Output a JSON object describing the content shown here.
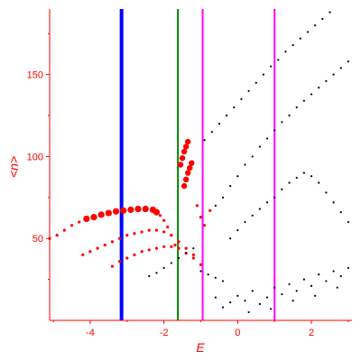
{
  "chart_data": {
    "type": "scatter",
    "title": "",
    "xlabel": "E",
    "ylabel": "<n>",
    "xlim": [
      -5.1,
      3.1
    ],
    "ylim": [
      0,
      190
    ],
    "x_ticks": [
      -4,
      -2,
      0,
      2
    ],
    "y_ticks": [
      50,
      100,
      150
    ],
    "x_tick_labels": [
      "-4",
      "-2",
      "0",
      "2"
    ],
    "y_tick_labels": [
      "50",
      "100",
      "150"
    ],
    "grid": false,
    "colors": {
      "axes": "#ff0000",
      "red_series": "#ff0000",
      "black_series": "#000000",
      "blue_line": "#0000ff",
      "green_line": "#008000",
      "magenta_line": "#ff00ff"
    },
    "vertical_lines": [
      {
        "x": -3.15,
        "color": "#0000ff"
      },
      {
        "x": -1.62,
        "color": "#008000"
      },
      {
        "x": -0.95,
        "color": "#ff00ff"
      },
      {
        "x": 1.0,
        "color": "#ff00ff"
      }
    ],
    "series": [
      {
        "color": "#ff0000",
        "points": [
          [
            -5.1,
            50
          ],
          [
            -4.9,
            52
          ],
          [
            -4.7,
            55
          ],
          [
            -4.5,
            58
          ],
          [
            -4.3,
            60
          ],
          [
            -4.1,
            62
          ],
          [
            -3.9,
            63
          ],
          [
            -3.7,
            64.5
          ],
          [
            -3.5,
            65.5
          ],
          [
            -3.3,
            66.5
          ],
          [
            -3.1,
            67
          ],
          [
            -2.9,
            67.5
          ],
          [
            -2.7,
            68
          ],
          [
            -2.5,
            68
          ],
          [
            -2.3,
            67.5
          ],
          [
            -2.2,
            66
          ],
          [
            -2.1,
            64
          ],
          [
            -2.0,
            61
          ],
          [
            -1.9,
            57
          ],
          [
            -1.8,
            52
          ],
          [
            -1.7,
            46
          ],
          [
            -4.2,
            40
          ],
          [
            -4.0,
            42
          ],
          [
            -3.8,
            44
          ],
          [
            -3.6,
            46
          ],
          [
            -3.4,
            48
          ],
          [
            -3.2,
            50
          ],
          [
            -3.0,
            52
          ],
          [
            -2.8,
            53
          ],
          [
            -2.6,
            54
          ],
          [
            -2.4,
            55
          ],
          [
            -2.2,
            55
          ],
          [
            -2.0,
            54
          ],
          [
            -1.8,
            52
          ],
          [
            -1.6,
            48
          ],
          [
            -1.4,
            44
          ],
          [
            -1.2,
            40
          ],
          [
            -3.4,
            33
          ],
          [
            -3.2,
            36
          ],
          [
            -3.0,
            38
          ],
          [
            -2.8,
            40
          ],
          [
            -2.6,
            42
          ],
          [
            -2.4,
            43
          ],
          [
            -2.2,
            44
          ],
          [
            -2.0,
            45
          ],
          [
            -1.8,
            45
          ],
          [
            -1.6,
            44
          ],
          [
            -1.4,
            41
          ],
          [
            -1.2,
            38
          ],
          [
            -1.0,
            34
          ],
          [
            -1.45,
            82
          ],
          [
            -1.4,
            86
          ],
          [
            -1.35,
            90
          ],
          [
            -1.3,
            93
          ],
          [
            -1.25,
            96
          ],
          [
            -1.55,
            95
          ],
          [
            -1.5,
            99
          ],
          [
            -1.45,
            103
          ],
          [
            -1.4,
            106
          ],
          [
            -1.35,
            109
          ],
          [
            -1.1,
            70
          ],
          [
            -1.0,
            63
          ],
          [
            -0.9,
            58
          ],
          [
            -0.75,
            67
          ]
        ]
      },
      {
        "color": "#000000",
        "points": [
          [
            -2.4,
            27
          ],
          [
            -2.2,
            29
          ],
          [
            -2.0,
            32
          ],
          [
            -1.8,
            35
          ],
          [
            -1.6,
            38
          ],
          [
            -1.4,
            41
          ],
          [
            -1.2,
            44
          ],
          [
            -1.0,
            30
          ],
          [
            -0.8,
            28
          ],
          [
            -0.6,
            26
          ],
          [
            -0.4,
            24
          ],
          [
            -0.2,
            50
          ],
          [
            0.0,
            55
          ],
          [
            0.2,
            60
          ],
          [
            0.4,
            64
          ],
          [
            0.6,
            68
          ],
          [
            0.8,
            72
          ],
          [
            1.0,
            75
          ],
          [
            1.2,
            80
          ],
          [
            1.4,
            84
          ],
          [
            1.6,
            87
          ],
          [
            1.8,
            90
          ],
          [
            2.0,
            88
          ],
          [
            2.2,
            84
          ],
          [
            2.4,
            78
          ],
          [
            2.6,
            72
          ],
          [
            2.8,
            66
          ],
          [
            3.0,
            60
          ],
          [
            -0.6,
            70
          ],
          [
            -0.4,
            75
          ],
          [
            -0.2,
            82
          ],
          [
            0.0,
            88
          ],
          [
            0.2,
            95
          ],
          [
            0.4,
            100
          ],
          [
            0.6,
            106
          ],
          [
            0.8,
            111
          ],
          [
            1.0,
            116
          ],
          [
            1.2,
            121
          ],
          [
            1.4,
            125
          ],
          [
            1.6,
            130
          ],
          [
            1.8,
            134
          ],
          [
            2.0,
            138
          ],
          [
            2.2,
            142
          ],
          [
            2.4,
            146
          ],
          [
            2.6,
            150
          ],
          [
            2.8,
            154
          ],
          [
            3.0,
            158
          ],
          [
            -0.9,
            110
          ],
          [
            -0.7,
            115
          ],
          [
            -0.5,
            120
          ],
          [
            -0.3,
            125
          ],
          [
            -0.1,
            130
          ],
          [
            0.1,
            135
          ],
          [
            0.3,
            140
          ],
          [
            0.5,
            145
          ],
          [
            0.7,
            150
          ],
          [
            0.9,
            155
          ],
          [
            1.1,
            159
          ],
          [
            1.3,
            164
          ],
          [
            1.5,
            168
          ],
          [
            1.7,
            172
          ],
          [
            1.9,
            176
          ],
          [
            2.1,
            180
          ],
          [
            2.3,
            184
          ],
          [
            2.5,
            188
          ],
          [
            0.0,
            15
          ],
          [
            0.2,
            12
          ],
          [
            0.4,
            18
          ],
          [
            0.6,
            10
          ],
          [
            0.8,
            14
          ],
          [
            1.0,
            20
          ],
          [
            1.2,
            16
          ],
          [
            1.4,
            22
          ],
          [
            1.6,
            18
          ],
          [
            1.8,
            25
          ],
          [
            2.0,
            21
          ],
          [
            2.2,
            28
          ],
          [
            2.4,
            24
          ],
          [
            2.6,
            30
          ],
          [
            2.8,
            27
          ],
          [
            3.0,
            32
          ],
          [
            -0.6,
            14
          ],
          [
            -0.4,
            8
          ],
          [
            -0.2,
            11
          ],
          [
            0.3,
            5
          ],
          [
            0.9,
            7
          ],
          [
            1.5,
            12
          ],
          [
            2.1,
            15
          ],
          [
            2.7,
            20
          ]
        ]
      }
    ]
  }
}
